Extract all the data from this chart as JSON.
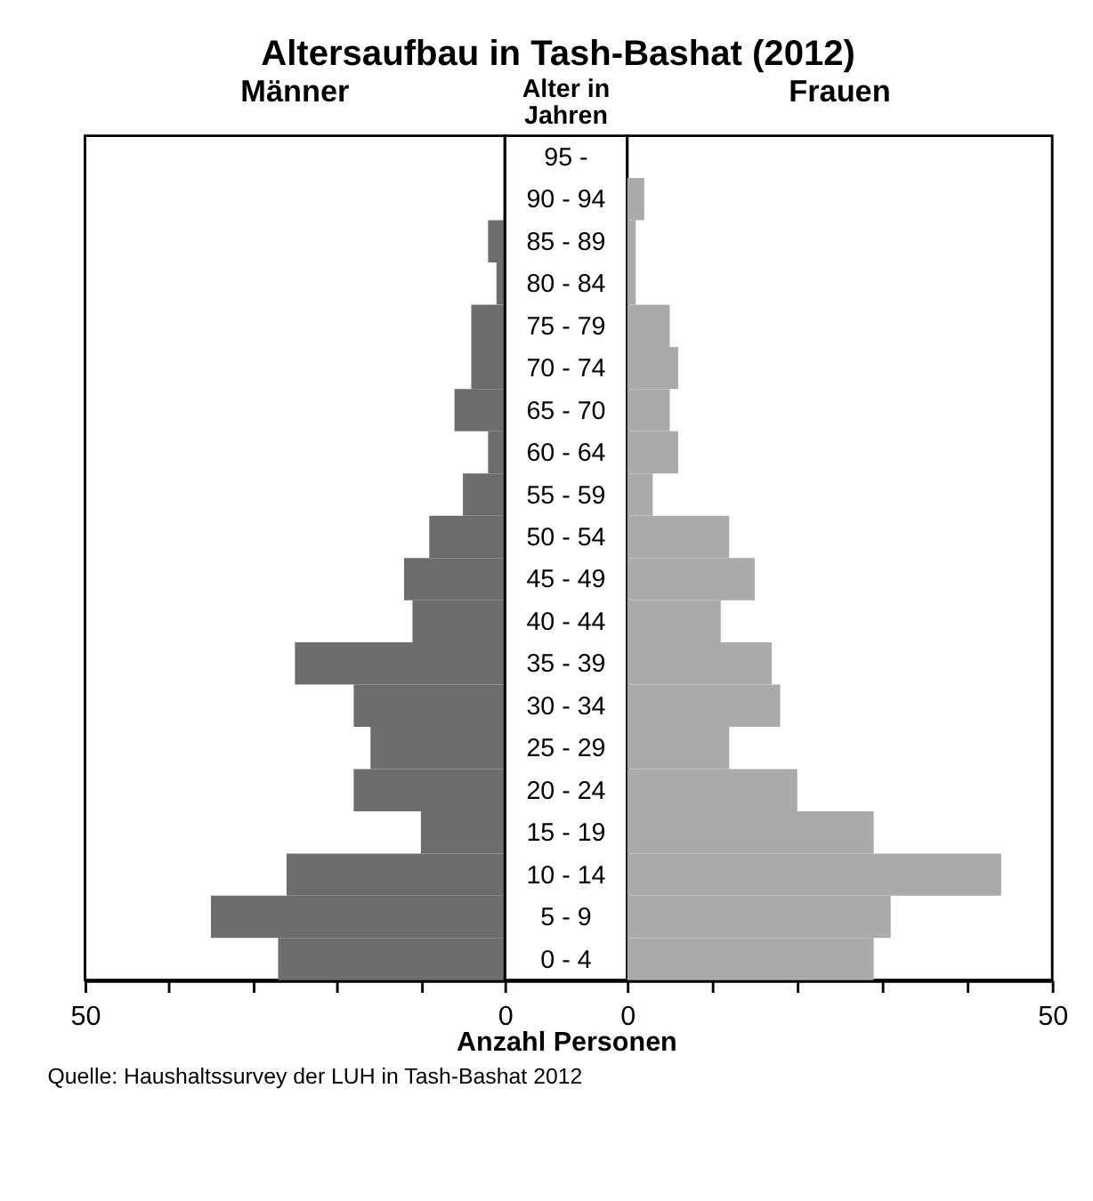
{
  "chart_data": [
    {
      "type": "bar",
      "orientation": "horizontal",
      "title": "Altersaufbau in Tash-Bashat (2012)",
      "ylabel": "Alter in Jahren",
      "xlabel": "Anzahl Personen",
      "annotations": [
        "Quelle: Haushaltssurvey der LUH in Tash-Bashat 2012"
      ],
      "categories": [
        "95 -",
        "90 - 94",
        "85 - 89",
        "80 - 84",
        "75 - 79",
        "70 - 74",
        "65 - 70",
        "60 - 64",
        "55 - 59",
        "50 - 54",
        "45 - 49",
        "40 - 44",
        "35 - 39",
        "30 - 34",
        "25 - 29",
        "20 - 24",
        "15 - 19",
        "10 - 14",
        "5 - 9",
        "0 - 4"
      ],
      "series": [
        {
          "name": "Männer",
          "color": "#6d6d6d",
          "values": [
            0,
            0,
            2,
            1,
            4,
            4,
            6,
            2,
            5,
            9,
            12,
            11,
            25,
            18,
            16,
            18,
            10,
            26,
            35,
            27
          ]
        }
      ],
      "xlim": [
        50,
        0
      ],
      "xticks": [
        50,
        {
          "value": 40,
          "label": null
        },
        {
          "value": 30,
          "label": null
        },
        {
          "value": 20,
          "label": null
        },
        {
          "value": 10,
          "label": null
        },
        0
      ]
    },
    {
      "type": "bar",
      "orientation": "horizontal",
      "tick_labels": "x",
      "categories": [
        null,
        null,
        null,
        null,
        null,
        null,
        null,
        null,
        null,
        null,
        null,
        null,
        null,
        null,
        null,
        null,
        null,
        null,
        null,
        null
      ],
      "series": [
        {
          "name": "Frauen",
          "color": "#aaaaaa",
          "values": [
            0,
            2,
            1,
            1,
            5,
            6,
            5,
            6,
            3,
            12,
            15,
            11,
            17,
            18,
            12,
            20,
            29,
            44,
            31,
            29
          ]
        }
      ],
      "xlim": [
        0,
        50
      ],
      "xticks": [
        0,
        {
          "value": 10,
          "label": null
        },
        {
          "value": 20,
          "label": null
        },
        {
          "value": 30,
          "label": null
        },
        {
          "value": 40,
          "label": null
        },
        50
      ]
    }
  ]
}
